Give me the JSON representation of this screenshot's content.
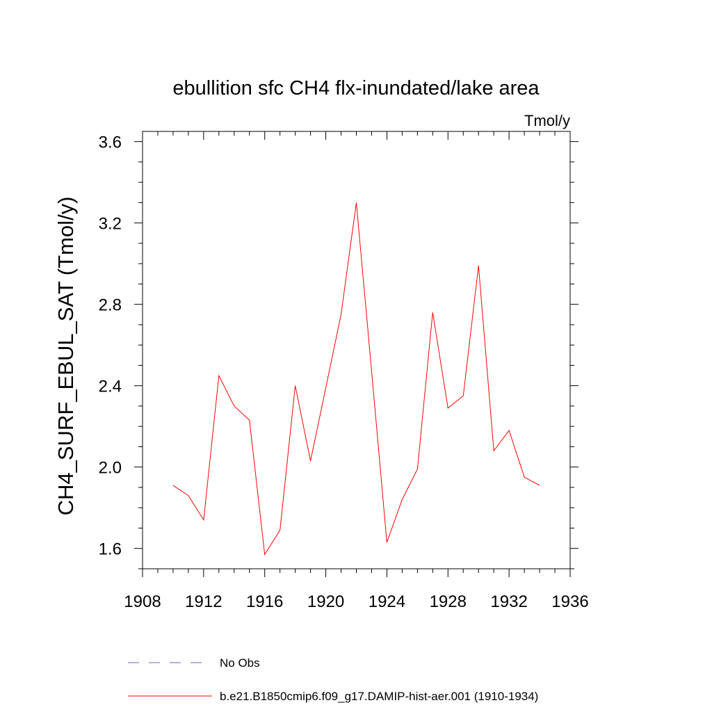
{
  "chart_data": {
    "type": "line",
    "title": "ebullition sfc CH4 flx-inundated/lake area",
    "units_label": "Tmol/y",
    "ylabel": "CH4_SURF_EBUL_SAT  (Tmol/y)",
    "xlabel": "",
    "xlim": [
      1908,
      1936
    ],
    "ylim": [
      1.5,
      3.65
    ],
    "x_ticks": [
      1908,
      1912,
      1916,
      1920,
      1924,
      1928,
      1932,
      1936
    ],
    "y_ticks": [
      1.6,
      2.0,
      2.4,
      2.8,
      3.2,
      3.6
    ],
    "y_tick_labels": [
      "1.6",
      "2.0",
      "2.4",
      "2.8",
      "3.2",
      "3.6"
    ],
    "grid": false,
    "legend_position": "bottom",
    "series": [
      {
        "name": "b.e21.B1850cmip6.f09_g17.DAMIP-hist-aer.001 (1910-1934)",
        "color": "#ff0000",
        "style": "solid",
        "x": [
          1910,
          1911,
          1912,
          1913,
          1914,
          1915,
          1916,
          1917,
          1918,
          1919,
          1920,
          1921,
          1922,
          1923,
          1924,
          1925,
          1926,
          1927,
          1928,
          1929,
          1930,
          1931,
          1932,
          1933,
          1934
        ],
        "y": [
          1.91,
          1.86,
          1.74,
          2.45,
          2.3,
          2.23,
          1.57,
          1.69,
          2.4,
          2.03,
          2.39,
          2.75,
          3.3,
          2.47,
          1.63,
          1.84,
          1.99,
          2.76,
          2.29,
          2.35,
          2.99,
          2.08,
          2.18,
          1.95,
          1.91
        ]
      }
    ],
    "legend": [
      {
        "label": "No Obs",
        "color": "#6666cc",
        "style": "dashed"
      },
      {
        "label": "b.e21.B1850cmip6.f09_g17.DAMIP-hist-aer.001 (1910-1934)",
        "color": "#ff0000",
        "style": "solid"
      }
    ]
  }
}
